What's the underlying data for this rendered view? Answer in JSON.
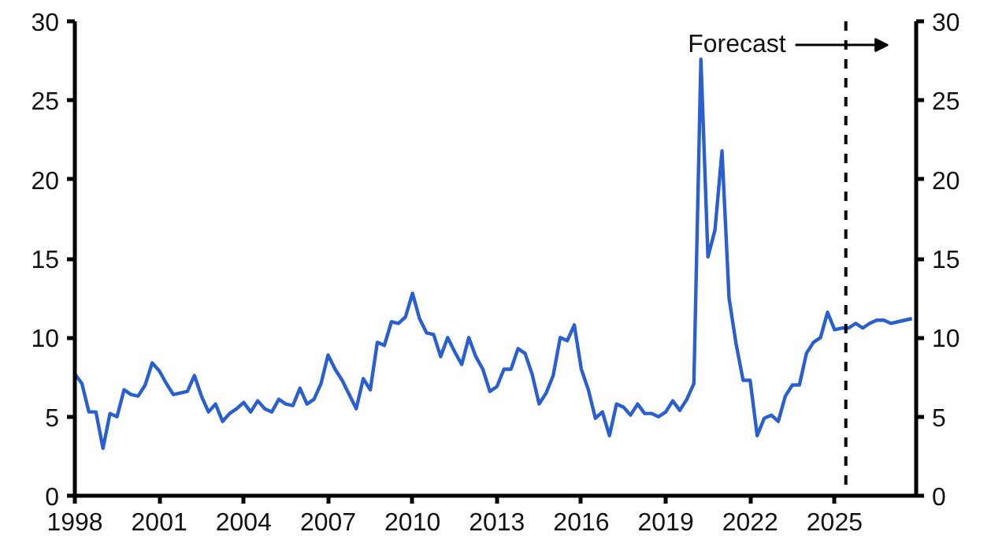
{
  "chart_data": {
    "type": "line",
    "x": [
      1998,
      1998.25,
      1998.5,
      1998.75,
      1999,
      1999.25,
      1999.5,
      1999.75,
      2000,
      2000.25,
      2000.5,
      2000.75,
      2001,
      2001.25,
      2001.5,
      2001.75,
      2002,
      2002.25,
      2002.5,
      2002.75,
      2003,
      2003.25,
      2003.5,
      2003.75,
      2004,
      2004.25,
      2004.5,
      2004.75,
      2005,
      2005.25,
      2005.5,
      2005.75,
      2006,
      2006.25,
      2006.5,
      2006.75,
      2007,
      2007.25,
      2007.5,
      2007.75,
      2008,
      2008.25,
      2008.5,
      2008.75,
      2009,
      2009.25,
      2009.5,
      2009.75,
      2010,
      2010.25,
      2010.5,
      2010.75,
      2011,
      2011.25,
      2011.5,
      2011.75,
      2012,
      2012.25,
      2012.5,
      2012.75,
      2013,
      2013.25,
      2013.5,
      2013.75,
      2014,
      2014.25,
      2014.5,
      2014.75,
      2015,
      2015.25,
      2015.5,
      2015.75,
      2016,
      2016.25,
      2016.5,
      2016.75,
      2017,
      2017.25,
      2017.5,
      2017.75,
      2018,
      2018.25,
      2018.5,
      2018.75,
      2019,
      2019.25,
      2019.5,
      2019.75,
      2020,
      2020.25,
      2020.5,
      2020.75,
      2021,
      2021.25,
      2021.5,
      2021.75,
      2022,
      2022.25,
      2022.5,
      2022.75,
      2023,
      2023.25,
      2023.5,
      2023.75,
      2024,
      2024.25,
      2024.5,
      2024.75,
      2025,
      2025.25,
      2025.5,
      2025.75,
      2026,
      2026.25,
      2026.5,
      2026.75,
      2027,
      2027.25,
      2027.5,
      2027.75
    ],
    "series": [
      {
        "color": "#2a5fd0",
        "values": [
          7.7,
          7.1,
          5.3,
          5.3,
          3.0,
          5.2,
          5.0,
          6.7,
          6.4,
          6.3,
          7.0,
          8.4,
          7.9,
          7.1,
          6.4,
          6.5,
          6.6,
          7.6,
          6.3,
          5.3,
          5.8,
          4.7,
          5.2,
          5.5,
          5.9,
          5.3,
          6.0,
          5.5,
          5.3,
          6.1,
          5.8,
          5.7,
          6.8,
          5.8,
          6.1,
          7.1,
          8.9,
          8.0,
          7.3,
          6.4,
          5.5,
          7.4,
          6.7,
          9.7,
          9.5,
          11.0,
          10.9,
          11.3,
          12.8,
          11.2,
          10.3,
          10.2,
          8.8,
          10.0,
          9.1,
          8.3,
          10.0,
          8.8,
          8.0,
          6.6,
          6.9,
          8.0,
          8.0,
          9.3,
          9.0,
          7.7,
          5.8,
          6.5,
          7.6,
          10.0,
          9.8,
          10.8,
          8.0,
          6.7,
          4.9,
          5.3,
          3.8,
          5.8,
          5.6,
          5.1,
          5.8,
          5.2,
          5.2,
          5.0,
          5.3,
          6.0,
          5.4,
          6.1,
          7.1,
          27.6,
          15.1,
          16.8,
          21.8,
          12.5,
          9.6,
          7.3,
          7.3,
          3.8,
          4.9,
          5.1,
          4.7,
          6.3,
          7.0,
          7.0,
          9.0,
          9.7,
          10.0,
          11.6,
          10.5,
          10.6,
          10.6,
          10.9,
          10.6,
          10.9,
          11.1,
          11.1,
          10.9,
          11.0,
          11.1,
          11.2
        ]
      }
    ],
    "xlim": [
      1998,
      2027.9
    ],
    "xticks": [
      1998,
      2001,
      2004,
      2007,
      2010,
      2013,
      2016,
      2019,
      2022,
      2025
    ],
    "ylim": [
      0,
      30
    ],
    "yticks": [
      0,
      5,
      10,
      15,
      20,
      25,
      30
    ],
    "y2lim": [
      0,
      30
    ],
    "y2ticks": [
      0,
      5,
      10,
      15,
      20,
      25,
      30
    ],
    "ref_lines": [
      {
        "axis": "x",
        "value": 2025.4,
        "label": "Forecast",
        "line_style": "dashed",
        "color": "#000000"
      }
    ],
    "grid": false,
    "marker": "none",
    "line_style": "solid"
  }
}
